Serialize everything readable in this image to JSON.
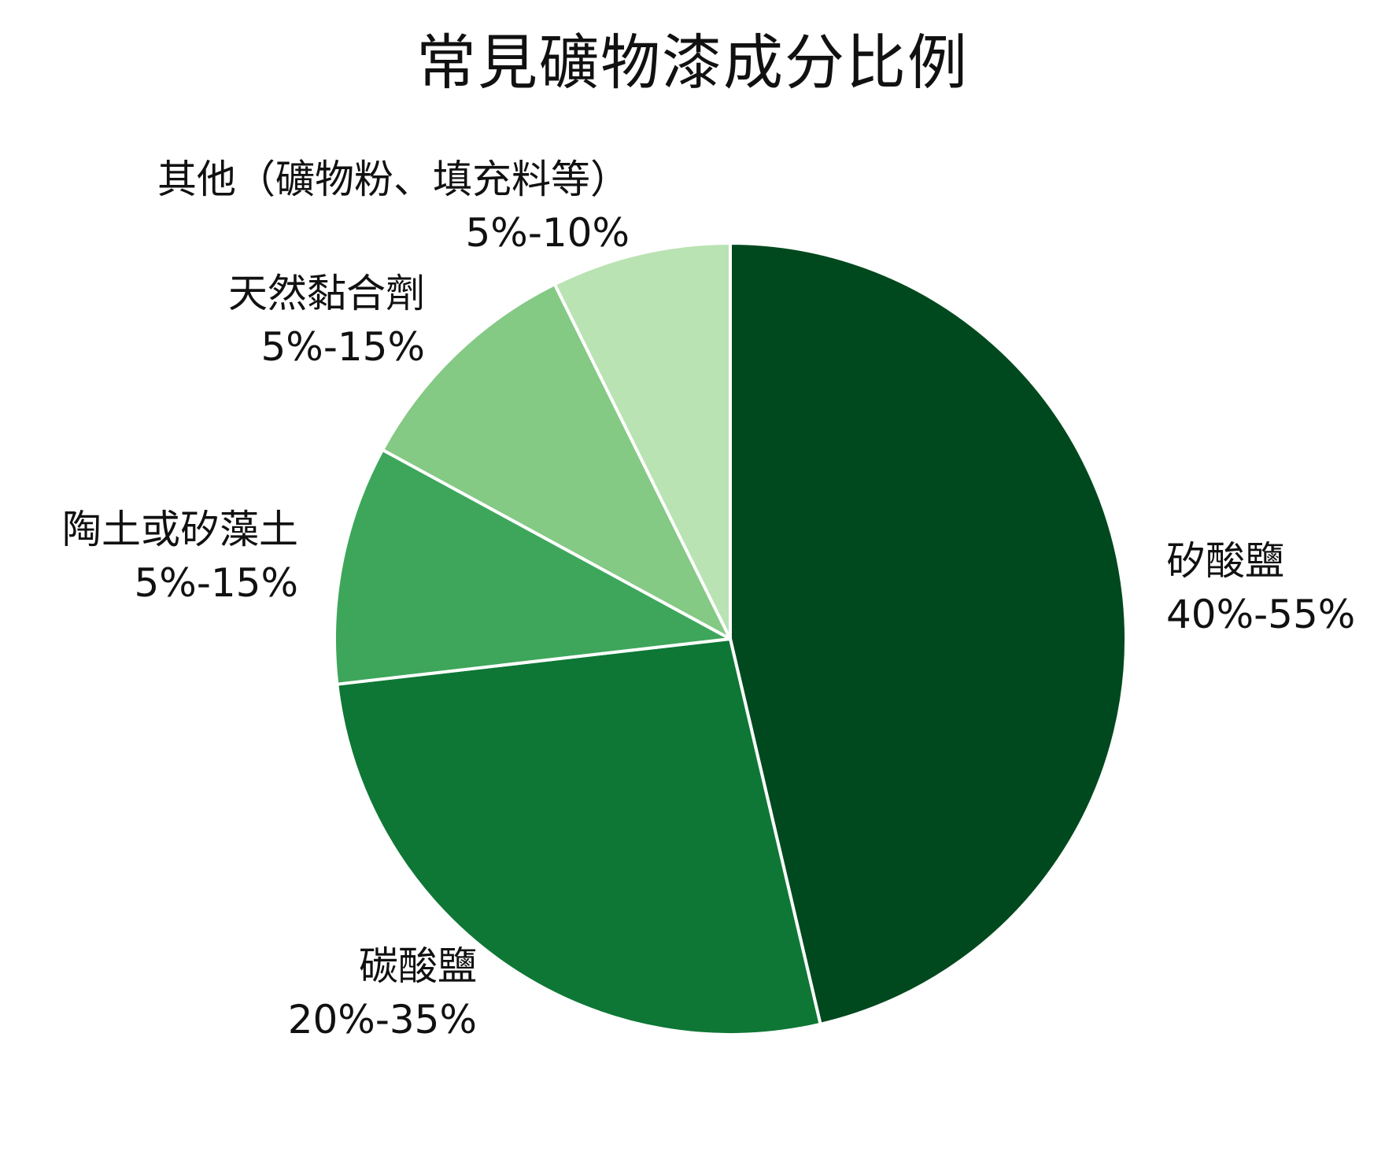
{
  "chart_data": {
    "type": "pie",
    "title": "常見礦物漆成分比例",
    "start_angle_deg": 0,
    "direction": "clockwise",
    "slices": [
      {
        "label": "矽酸鹽",
        "range": "40%-55%",
        "value": 47.5,
        "color": "#00491e",
        "label_side": "right"
      },
      {
        "label": "碳酸鹽",
        "range": "20%-35%",
        "value": 27.5,
        "color": "#0e7735",
        "label_side": "left"
      },
      {
        "label": "陶土或矽藻土",
        "range": "5%-15%",
        "value": 10,
        "color": "#3ea65b",
        "label_side": "left"
      },
      {
        "label": "天然黏合劑",
        "range": "5%-15%",
        "value": 10,
        "color": "#84c984",
        "label_side": "left"
      },
      {
        "label": "其他（礦物粉、填充料等）",
        "range": "5%-10%",
        "value": 7.5,
        "color": "#b9e3b2",
        "label_side": "left"
      }
    ]
  }
}
